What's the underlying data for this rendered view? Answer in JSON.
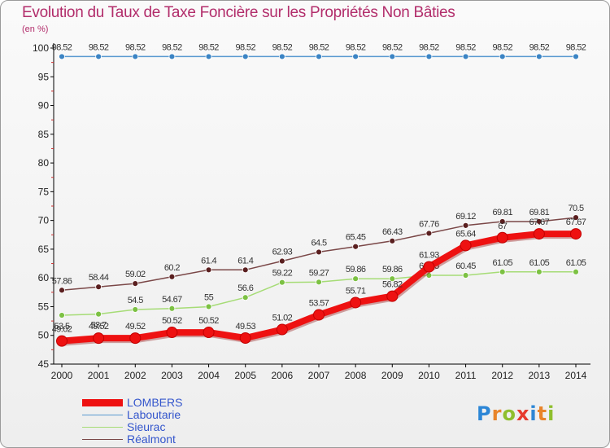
{
  "title": "Evolution du Taux de Taxe Foncière sur les Propriétés Non Bâties",
  "subtitle": "(en %)",
  "logo": {
    "text": "Proxiti",
    "colors": [
      "#2c86d6",
      "#e8842a",
      "#8fbf2e",
      "#e63a2e",
      "#2c86d6",
      "#e8842a",
      "#8fbf2e"
    ]
  },
  "chart_data": {
    "type": "line",
    "title": "Evolution du Taux de Taxe Foncière sur les Propriétés Non Bâties",
    "ylabel": "(en %)",
    "xlabel": "",
    "ylim": [
      45,
      100
    ],
    "yticks": [
      45,
      50,
      55,
      60,
      65,
      70,
      75,
      80,
      85,
      90,
      95,
      100
    ],
    "categories": [
      "2000",
      "2001",
      "2002",
      "2003",
      "2004",
      "2005",
      "2006",
      "2007",
      "2008",
      "2009",
      "2010",
      "2011",
      "2012",
      "2013",
      "2014"
    ],
    "grid": false,
    "legend_position": "bottom-left",
    "series": [
      {
        "name": "Laboutarie",
        "color": "#5a9ad0",
        "marker": "#3b84c4",
        "values": [
          98.52,
          98.52,
          98.52,
          98.52,
          98.52,
          98.52,
          98.52,
          98.52,
          98.52,
          98.52,
          98.52,
          98.52,
          98.52,
          98.52,
          98.52
        ],
        "labels": [
          "98.52",
          "98.52",
          "98.52",
          "98.52",
          "98.52",
          "98.52",
          "98.52",
          "98.52",
          "98.52",
          "98.52",
          "98.52",
          "98.52",
          "98.52",
          "98.52",
          "98.52"
        ]
      },
      {
        "name": "Sieurac",
        "color": "#a6dc76",
        "marker": "#7cc143",
        "values": [
          53.5,
          53.7,
          54.5,
          54.67,
          55,
          56.6,
          59.22,
          59.27,
          59.86,
          59.86,
          60.45,
          60.45,
          61.05,
          61.05,
          61.05
        ],
        "labels": [
          "53.5",
          "53.7",
          "54.5",
          "54.67",
          "55",
          "56.6",
          "59.22",
          "59.27",
          "59.86",
          "59.86",
          "60.45",
          "60.45",
          "61.05",
          "61.05",
          "61.05"
        ]
      },
      {
        "name": "Réalmont",
        "color": "#7a4747",
        "marker": "#5a1f1f",
        "values": [
          57.86,
          58.44,
          59.02,
          60.2,
          61.4,
          61.4,
          62.93,
          64.5,
          65.45,
          66.43,
          67.76,
          69.12,
          69.81,
          69.81,
          70.5
        ],
        "labels": [
          "57.86",
          "58.44",
          "59.02",
          "60.2",
          "61.4",
          "61.4",
          "62.93",
          "64.5",
          "65.45",
          "66.43",
          "67.76",
          "69.12",
          "69.81",
          "69.81",
          "70.5"
        ]
      },
      {
        "name": "LOMBERS",
        "color": "#ee1111",
        "marker": "#ee1111",
        "values": [
          49.02,
          49.52,
          49.52,
          50.52,
          50.52,
          49.53,
          51.02,
          53.57,
          55.71,
          56.82,
          61.93,
          65.64,
          67,
          67.67,
          67.67
        ],
        "labels": [
          "49.02",
          "49.52",
          "49.52",
          "50.52",
          "50.52",
          "49.53",
          "51.02",
          "53.57",
          "55.71",
          "56.82",
          "61.93",
          "65.64",
          "67",
          "67.67",
          "67.67"
        ]
      }
    ]
  }
}
